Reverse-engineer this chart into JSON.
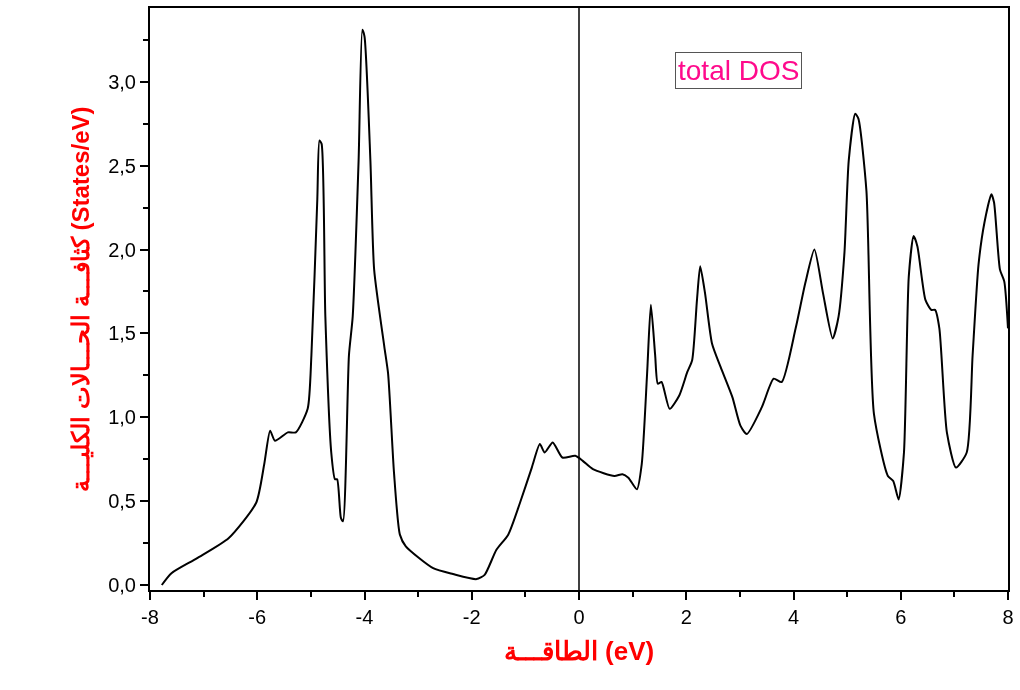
{
  "chart_data": {
    "type": "line",
    "xlabel": "الطاقـــة (eV)",
    "ylabel": "كثافـــة الحـــالات الكليـــة (States/eV)",
    "annotations": [
      "total DOS"
    ],
    "x": [
      -7.78,
      -7.6,
      -7.12,
      -6.53,
      -6.02,
      -5.87,
      -5.76,
      -5.67,
      -5.43,
      -5.28,
      -5.06,
      -4.99,
      -4.88,
      -4.84,
      -4.8,
      -4.73,
      -4.62,
      -4.55,
      -4.51,
      -4.44,
      -4.4,
      -4.29,
      -4.22,
      -4.11,
      -4.04,
      -4.0,
      -3.89,
      -3.82,
      -3.63,
      -3.56,
      -3.45,
      -3.34,
      -3.23,
      -2.72,
      -2.35,
      -1.91,
      -1.76,
      -1.54,
      -1.32,
      -1.1,
      -0.88,
      -0.73,
      -0.64,
      -0.49,
      -0.31,
      -0.07,
      0.07,
      0.26,
      0.66,
      0.81,
      0.92,
      1.08,
      1.17,
      1.27,
      1.34,
      1.42,
      1.47,
      1.54,
      1.69,
      1.87,
      2.02,
      2.11,
      2.2,
      2.26,
      2.35,
      2.48,
      2.64,
      2.86,
      3.01,
      3.13,
      3.41,
      3.63,
      3.78,
      4.04,
      4.22,
      4.39,
      4.55,
      4.73,
      4.84,
      4.95,
      5.03,
      5.15,
      5.21,
      5.36,
      5.5,
      5.76,
      5.86,
      5.96,
      6.06,
      6.15,
      6.24,
      6.31,
      6.46,
      6.57,
      6.64,
      6.72,
      6.86,
      7.03,
      7.23,
      7.34,
      7.45,
      7.56,
      7.69,
      7.74,
      7.85,
      7.93,
      8.0
    ],
    "series": [
      {
        "color": "#000000",
        "values": [
          0,
          0.07,
          0.16,
          0.28,
          0.49,
          0.72,
          0.92,
          0.86,
          0.91,
          0.91,
          1.05,
          1.37,
          2.3,
          2.65,
          2.63,
          1.6,
          0.79,
          0.63,
          0.63,
          0.4,
          0.38,
          1.37,
          1.6,
          2.53,
          3.31,
          3.27,
          2.53,
          1.88,
          1.42,
          1.26,
          0.67,
          0.3,
          0.23,
          0.1,
          0.065,
          0.035,
          0.06,
          0.21,
          0.3,
          0.49,
          0.7,
          0.84,
          0.79,
          0.85,
          0.76,
          0.77,
          0.74,
          0.69,
          0.65,
          0.66,
          0.64,
          0.57,
          0.72,
          1.26,
          1.67,
          1.37,
          1.2,
          1.21,
          1.05,
          1.13,
          1.27,
          1.34,
          1.7,
          1.9,
          1.74,
          1.44,
          1.3,
          1.12,
          0.95,
          0.9,
          1.06,
          1.23,
          1.21,
          1.53,
          1.8,
          2.0,
          1.74,
          1.47,
          1.6,
          1.98,
          2.53,
          2.81,
          2.78,
          2.35,
          1.02,
          0.65,
          0.62,
          0.51,
          0.79,
          1.84,
          2.08,
          2.02,
          1.7,
          1.64,
          1.64,
          1.53,
          0.91,
          0.7,
          0.79,
          1.37,
          1.91,
          2.16,
          2.33,
          2.28,
          1.88,
          1.81,
          1.53
        ]
      }
    ],
    "xlim": [
      -8,
      8
    ],
    "xticks": [
      -8,
      {
        "value": -7,
        "label": null
      },
      -6,
      {
        "value": -5,
        "label": null
      },
      -4,
      {
        "value": -3,
        "label": null
      },
      -2,
      {
        "value": -1,
        "label": null
      },
      0,
      {
        "value": 1,
        "label": null
      },
      2,
      {
        "value": 3,
        "label": null
      },
      4,
      {
        "value": 5,
        "label": null
      },
      6,
      {
        "value": 7,
        "label": null
      },
      8
    ],
    "ylim": [
      -0.03,
      3.44
    ],
    "yticks": [
      {
        "value": 0,
        "label": "0,0"
      },
      {
        "value": 0.25,
        "label": null
      },
      {
        "value": 0.5,
        "label": "0,5"
      },
      {
        "value": 0.75,
        "label": null
      },
      {
        "value": 1.0,
        "label": "1,0"
      },
      {
        "value": 1.25,
        "label": null
      },
      {
        "value": 1.5,
        "label": "1,5"
      },
      {
        "value": 1.75,
        "label": null
      },
      {
        "value": 2.0,
        "label": "2,0"
      },
      {
        "value": 2.25,
        "label": null
      },
      {
        "value": 2.5,
        "label": "2,5"
      },
      {
        "value": 2.75,
        "label": null
      },
      {
        "value": 3.0,
        "label": "3,0"
      },
      {
        "value": 3.25,
        "label": null
      }
    ],
    "ref_lines": [
      {
        "axis": "x",
        "value": 0,
        "color": "#000000"
      }
    ],
    "marker": "none",
    "line_style": "solid"
  }
}
